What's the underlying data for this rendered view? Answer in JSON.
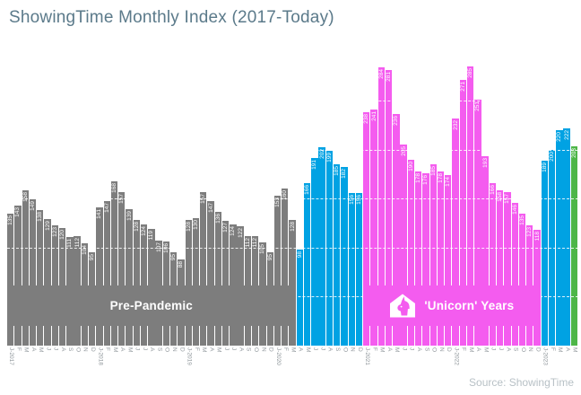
{
  "title": "ShowingTime Monthly Index (2017-Today)",
  "source": "Source: ShowingTime",
  "sections": {
    "pre_pandemic_label": "Pre-Pandemic",
    "unicorn_label": "'Unicorn' Years"
  },
  "colors": {
    "gray": "#7d7d7d",
    "blue": "#00a2e3",
    "magenta": "#f45cef",
    "green": "#4db648",
    "title_text": "#5b7a8a",
    "axis_text": "#8f969b",
    "source_text": "#b8c1c6",
    "bar_value_text": "#ffffff"
  },
  "chart_data": {
    "type": "bar",
    "title": "ShowingTime Monthly Index (2017-Today)",
    "xlabel": "",
    "ylabel": "",
    "ylim": [
      0,
      300
    ],
    "grid": "white dashed lines over bars",
    "gridline_values": [
      50,
      100,
      150,
      200,
      250
    ],
    "x": [
      "J-2017",
      "F",
      "M",
      "A",
      "M",
      "J",
      "J",
      "A",
      "S",
      "O",
      "N",
      "D",
      "J-2018",
      "F",
      "M",
      "A",
      "M",
      "J",
      "J",
      "A",
      "S",
      "O",
      "N",
      "D",
      "J-2019",
      "F",
      "M",
      "A",
      "M",
      "J",
      "J",
      "A",
      "S",
      "O",
      "N",
      "D",
      "J-2020",
      "F",
      "M",
      "A",
      "M",
      "J",
      "J",
      "A",
      "S",
      "O",
      "N",
      "D",
      "J-2021",
      "F",
      "M",
      "A",
      "M",
      "J",
      "J",
      "A",
      "S",
      "O",
      "N",
      "D",
      "J-2022",
      "F",
      "M",
      "A",
      "M",
      "J",
      "J",
      "A",
      "S",
      "O",
      "N",
      "D",
      "J-2023",
      "F",
      "M",
      "A",
      "M"
    ],
    "values": [
      135,
      143,
      158,
      149,
      138,
      129,
      123,
      120,
      111,
      112,
      104,
      95,
      141,
      147,
      168,
      157,
      139,
      128,
      124,
      119,
      107,
      106,
      95,
      88,
      128,
      130,
      157,
      147,
      136,
      127,
      124,
      122,
      112,
      112,
      105,
      95,
      153,
      160,
      128,
      98,
      166,
      191,
      202,
      199,
      185,
      182,
      156,
      156,
      238,
      241,
      284,
      281,
      236,
      205,
      190,
      178,
      176,
      185,
      178,
      174,
      232,
      271,
      285,
      251,
      193,
      166,
      158,
      157,
      146,
      135,
      123,
      118,
      189,
      200,
      220,
      222,
      203
    ],
    "segments": [
      {
        "label": "Pre-Pandemic",
        "color_key": "gray",
        "count": 39
      },
      {
        "label": "",
        "color_key": "blue",
        "count": 9
      },
      {
        "label": "'Unicorn' Years",
        "color_key": "magenta",
        "count": 24
      },
      {
        "label": "",
        "color_key": "blue",
        "count": 4
      },
      {
        "label": "",
        "color_key": "green",
        "count": 1
      }
    ],
    "legend": "none",
    "value_labels": "rotated 90deg, white, inside top of each bar"
  }
}
